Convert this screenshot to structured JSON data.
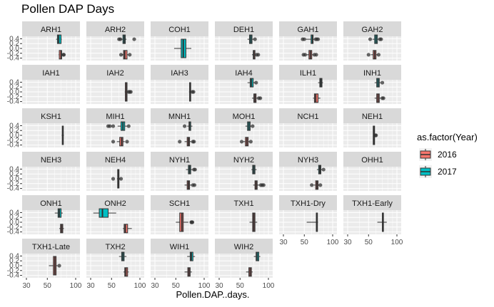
{
  "chart_data": {
    "type": "boxplot",
    "title": "Pollen DAP Days",
    "xlabel": "Pollen.DAP..days.",
    "ylabel": "",
    "x_ticks": [
      "30",
      "50",
      "100"
    ],
    "y_ticks": [
      "0.4",
      "0.2",
      "0.0",
      "-0.2",
      "-0.4"
    ],
    "legend": {
      "title": "as.factor(Year)",
      "position": "right",
      "entries": [
        {
          "label": "2016",
          "color": "#F8766D"
        },
        {
          "label": "2017",
          "color": "#00BFC4"
        }
      ]
    },
    "panels": [
      {
        "name": "ARH1",
        "boxes": [
          {
            "year": "2017",
            "q1": 64,
            "median": 66,
            "q3": 70,
            "lower": 62,
            "upper": 71,
            "outliers": []
          },
          {
            "year": "2016",
            "q1": 67,
            "median": 70,
            "q3": 71,
            "lower": 66,
            "upper": 72,
            "outliers": [
              74,
              75
            ]
          }
        ]
      },
      {
        "name": "ARH2",
        "boxes": [
          {
            "year": "2017",
            "q1": 66,
            "median": 68,
            "q3": 70,
            "lower": 63,
            "upper": 72,
            "outliers": [
              60,
              62,
              87
            ]
          },
          {
            "year": "2016",
            "q1": 67,
            "median": 69,
            "q3": 73,
            "lower": 64,
            "upper": 75,
            "outliers": [
              63,
              78
            ]
          }
        ]
      },
      {
        "name": "COH1",
        "boxes": [
          {
            "year": "2017",
            "q1": 57,
            "median": 60,
            "q3": 64,
            "lower": 48,
            "upper": 73,
            "outliers": []
          }
        ]
      },
      {
        "name": "DEH1",
        "boxes": [
          {
            "year": "2017",
            "q1": 63,
            "median": 65,
            "q3": 67,
            "lower": 60,
            "upper": 70,
            "outliers": [
              72
            ]
          },
          {
            "year": "2016",
            "q1": 69,
            "median": 70,
            "q3": 72,
            "lower": 67,
            "upper": 73,
            "outliers": [
              75,
              78
            ]
          }
        ]
      },
      {
        "name": "GAH1",
        "boxes": [
          {
            "year": "2017",
            "q1": 59,
            "median": 61,
            "q3": 62,
            "lower": 52,
            "upper": 64,
            "outliers": [
              48,
              50,
              66,
              68,
              70
            ]
          },
          {
            "year": "2016",
            "q1": 56,
            "median": 58,
            "q3": 60,
            "lower": 53,
            "upper": 62,
            "outliers": [
              49,
              51,
              64,
              67
            ]
          }
        ]
      },
      {
        "name": "GAH2",
        "boxes": [
          {
            "year": "2017",
            "q1": 58,
            "median": 60,
            "q3": 62,
            "lower": 55,
            "upper": 64,
            "outliers": [
              52,
              66,
              68
            ]
          },
          {
            "year": "2016",
            "q1": 56,
            "median": 58,
            "q3": 60,
            "lower": 53,
            "upper": 62,
            "outliers": [
              50,
              64
            ]
          }
        ]
      },
      {
        "name": "IAH1",
        "boxes": []
      },
      {
        "name": "IAH2",
        "boxes": [
          {
            "year": "2016",
            "q1": 70,
            "median": 72,
            "q3": 73,
            "lower": 69,
            "upper": 74,
            "outliers": [
              76,
              78,
              80
            ]
          }
        ]
      },
      {
        "name": "IAH3",
        "boxes": [
          {
            "year": "2016",
            "q1": 70,
            "median": 71,
            "q3": 72,
            "lower": 69,
            "upper": 73,
            "outliers": [
              75,
              77
            ]
          }
        ]
      },
      {
        "name": "IAH4",
        "boxes": [
          {
            "year": "2017",
            "q1": 64,
            "median": 66,
            "q3": 69,
            "lower": 60,
            "upper": 72,
            "outliers": [
              74
            ]
          },
          {
            "year": "2016",
            "q1": 70,
            "median": 72,
            "q3": 74,
            "lower": 67,
            "upper": 76,
            "outliers": [
              79,
              82
            ]
          }
        ]
      },
      {
        "name": "ILH1",
        "boxes": [
          {
            "year": "2017",
            "q1": 73,
            "median": 75,
            "q3": 77,
            "lower": 70,
            "upper": 79,
            "outliers": []
          },
          {
            "year": "2016",
            "q1": 64,
            "median": 66,
            "q3": 70,
            "lower": 62,
            "upper": 74,
            "outliers": []
          }
        ]
      },
      {
        "name": "INH1",
        "boxes": [
          {
            "year": "2017",
            "q1": 61,
            "median": 63,
            "q3": 65,
            "lower": 58,
            "upper": 67,
            "outliers": [
              70
            ]
          },
          {
            "year": "2016",
            "q1": 61,
            "median": 63,
            "q3": 65,
            "lower": 58,
            "upper": 67,
            "outliers": [
              70,
              72
            ]
          }
        ]
      },
      {
        "name": "KSH1",
        "boxes": [
          {
            "year": "2016",
            "q1": 72,
            "median": 73,
            "q3": 74,
            "lower": 71,
            "upper": 75,
            "outliers": []
          }
        ]
      },
      {
        "name": "MIH1",
        "boxes": [
          {
            "year": "2017",
            "q1": 63,
            "median": 66,
            "q3": 69,
            "lower": 58,
            "upper": 73,
            "outliers": [
              46,
              48,
              52,
              76
            ]
          },
          {
            "year": "2016",
            "q1": 61,
            "median": 64,
            "q3": 66,
            "lower": 57,
            "upper": 69,
            "outliers": [
              52,
              73
            ]
          }
        ]
      },
      {
        "name": "MNH1",
        "boxes": [
          {
            "year": "2017",
            "q1": 69,
            "median": 70,
            "q3": 72,
            "lower": 66,
            "upper": 75,
            "outliers": [
              62
            ]
          },
          {
            "year": "2016",
            "q1": 66,
            "median": 68,
            "q3": 70,
            "lower": 62,
            "upper": 73,
            "outliers": [
              55,
              76,
              78
            ]
          }
        ]
      },
      {
        "name": "MOH1",
        "boxes": [
          {
            "year": "2017",
            "q1": 60,
            "median": 62,
            "q3": 64,
            "lower": 57,
            "upper": 66,
            "outliers": [
              68
            ]
          },
          {
            "year": "2016",
            "q1": 57,
            "median": 59,
            "q3": 61,
            "lower": 54,
            "upper": 63,
            "outliers": [
              52,
              65
            ]
          }
        ]
      },
      {
        "name": "NCH1",
        "boxes": []
      },
      {
        "name": "NEH1",
        "boxes": [
          {
            "year": "2016",
            "q1": 56,
            "median": 57,
            "q3": 58,
            "lower": 56,
            "upper": 58,
            "outliers": [
              59,
              60
            ]
          }
        ]
      },
      {
        "name": "NEH3",
        "boxes": []
      },
      {
        "name": "NEH4",
        "boxes": [
          {
            "year": "2016",
            "q1": 58,
            "median": 59,
            "q3": 60,
            "lower": 57,
            "upper": 62,
            "outliers": [
              52,
              63
            ]
          }
        ]
      },
      {
        "name": "NYH1",
        "boxes": [
          {
            "year": "2017",
            "q1": 68,
            "median": 70,
            "q3": 72,
            "lower": 64,
            "upper": 75,
            "outliers": [
              78,
              80
            ]
          },
          {
            "year": "2016",
            "q1": 66,
            "median": 68,
            "q3": 70,
            "lower": 62,
            "upper": 73,
            "outliers": [
              76,
              79
            ]
          }
        ]
      },
      {
        "name": "NYH2",
        "boxes": [
          {
            "year": "2017",
            "q1": 68,
            "median": 70,
            "q3": 72,
            "lower": 66,
            "upper": 75,
            "outliers": []
          },
          {
            "year": "2016",
            "q1": 72,
            "median": 74,
            "q3": 76,
            "lower": 69,
            "upper": 80,
            "outliers": [
              83,
              86,
              89
            ]
          }
        ]
      },
      {
        "name": "NYH3",
        "boxes": [
          {
            "year": "2017",
            "q1": 71,
            "median": 73,
            "q3": 75,
            "lower": 68,
            "upper": 77,
            "outliers": [
              80
            ]
          },
          {
            "year": "2016",
            "q1": 66,
            "median": 68,
            "q3": 70,
            "lower": 63,
            "upper": 72,
            "outliers": [
              60,
              74
            ]
          }
        ]
      },
      {
        "name": "OHH1",
        "boxes": []
      },
      {
        "name": "ONH1",
        "boxes": [
          {
            "year": "2017",
            "q1": 65,
            "median": 67,
            "q3": 70,
            "lower": 60,
            "upper": 73,
            "outliers": []
          },
          {
            "year": "2016",
            "q1": 69,
            "median": 71,
            "q3": 73,
            "lower": 67,
            "upper": 75,
            "outliers": []
          }
        ]
      },
      {
        "name": "ONH2",
        "boxes": [
          {
            "year": "2017",
            "q1": 37,
            "median": 40,
            "q3": 46,
            "lower": 32,
            "upper": 56,
            "outliers": []
          },
          {
            "year": "2016",
            "q1": 68,
            "median": 70,
            "q3": 74,
            "lower": 66,
            "upper": 82,
            "outliers": []
          }
        ]
      },
      {
        "name": "SCH1",
        "boxes": [
          {
            "year": "2016",
            "q1": 55,
            "median": 58,
            "q3": 60,
            "lower": 50,
            "upper": 68,
            "outliers": [
              73,
              74,
              75
            ]
          }
        ]
      },
      {
        "name": "TXH1",
        "boxes": [
          {
            "year": "2016",
            "q1": 68,
            "median": 70,
            "q3": 72,
            "lower": 63,
            "upper": 76,
            "outliers": []
          }
        ]
      },
      {
        "name": "TXH1-Dry",
        "boxes": [
          {
            "year": "2016",
            "q1": 67,
            "median": 68,
            "q3": 69,
            "lower": 53,
            "upper": 70,
            "outliers": []
          }
        ]
      },
      {
        "name": "TXH1-Early",
        "boxes": [
          {
            "year": "2016",
            "q1": 70,
            "median": 71,
            "q3": 72,
            "lower": 62,
            "upper": 78,
            "outliers": []
          }
        ]
      },
      {
        "name": "TXH1-Late",
        "boxes": [
          {
            "year": "2016",
            "q1": 58,
            "median": 60,
            "q3": 62,
            "lower": 52,
            "upper": 64,
            "outliers": [
              67
            ]
          }
        ]
      },
      {
        "name": "TXH2",
        "boxes": [
          {
            "year": "2017",
            "q1": 64,
            "median": 66,
            "q3": 68,
            "lower": 60,
            "upper": 72,
            "outliers": []
          },
          {
            "year": "2016",
            "q1": 69,
            "median": 71,
            "q3": 74,
            "lower": 67,
            "upper": 76,
            "outliers": []
          }
        ]
      },
      {
        "name": "WIH1",
        "boxes": [
          {
            "year": "2017",
            "q1": 71,
            "median": 73,
            "q3": 76,
            "lower": 66,
            "upper": 80,
            "outliers": []
          },
          {
            "year": "2016",
            "q1": 67,
            "median": 69,
            "q3": 71,
            "lower": 62,
            "upper": 74,
            "outliers": []
          }
        ]
      },
      {
        "name": "WIH2",
        "boxes": [
          {
            "year": "2017",
            "q1": 74,
            "median": 76,
            "q3": 79,
            "lower": 70,
            "upper": 82,
            "outliers": []
          },
          {
            "year": "2016",
            "q1": 62,
            "median": 64,
            "q3": 66,
            "lower": 58,
            "upper": 68,
            "outliers": []
          }
        ]
      }
    ]
  }
}
